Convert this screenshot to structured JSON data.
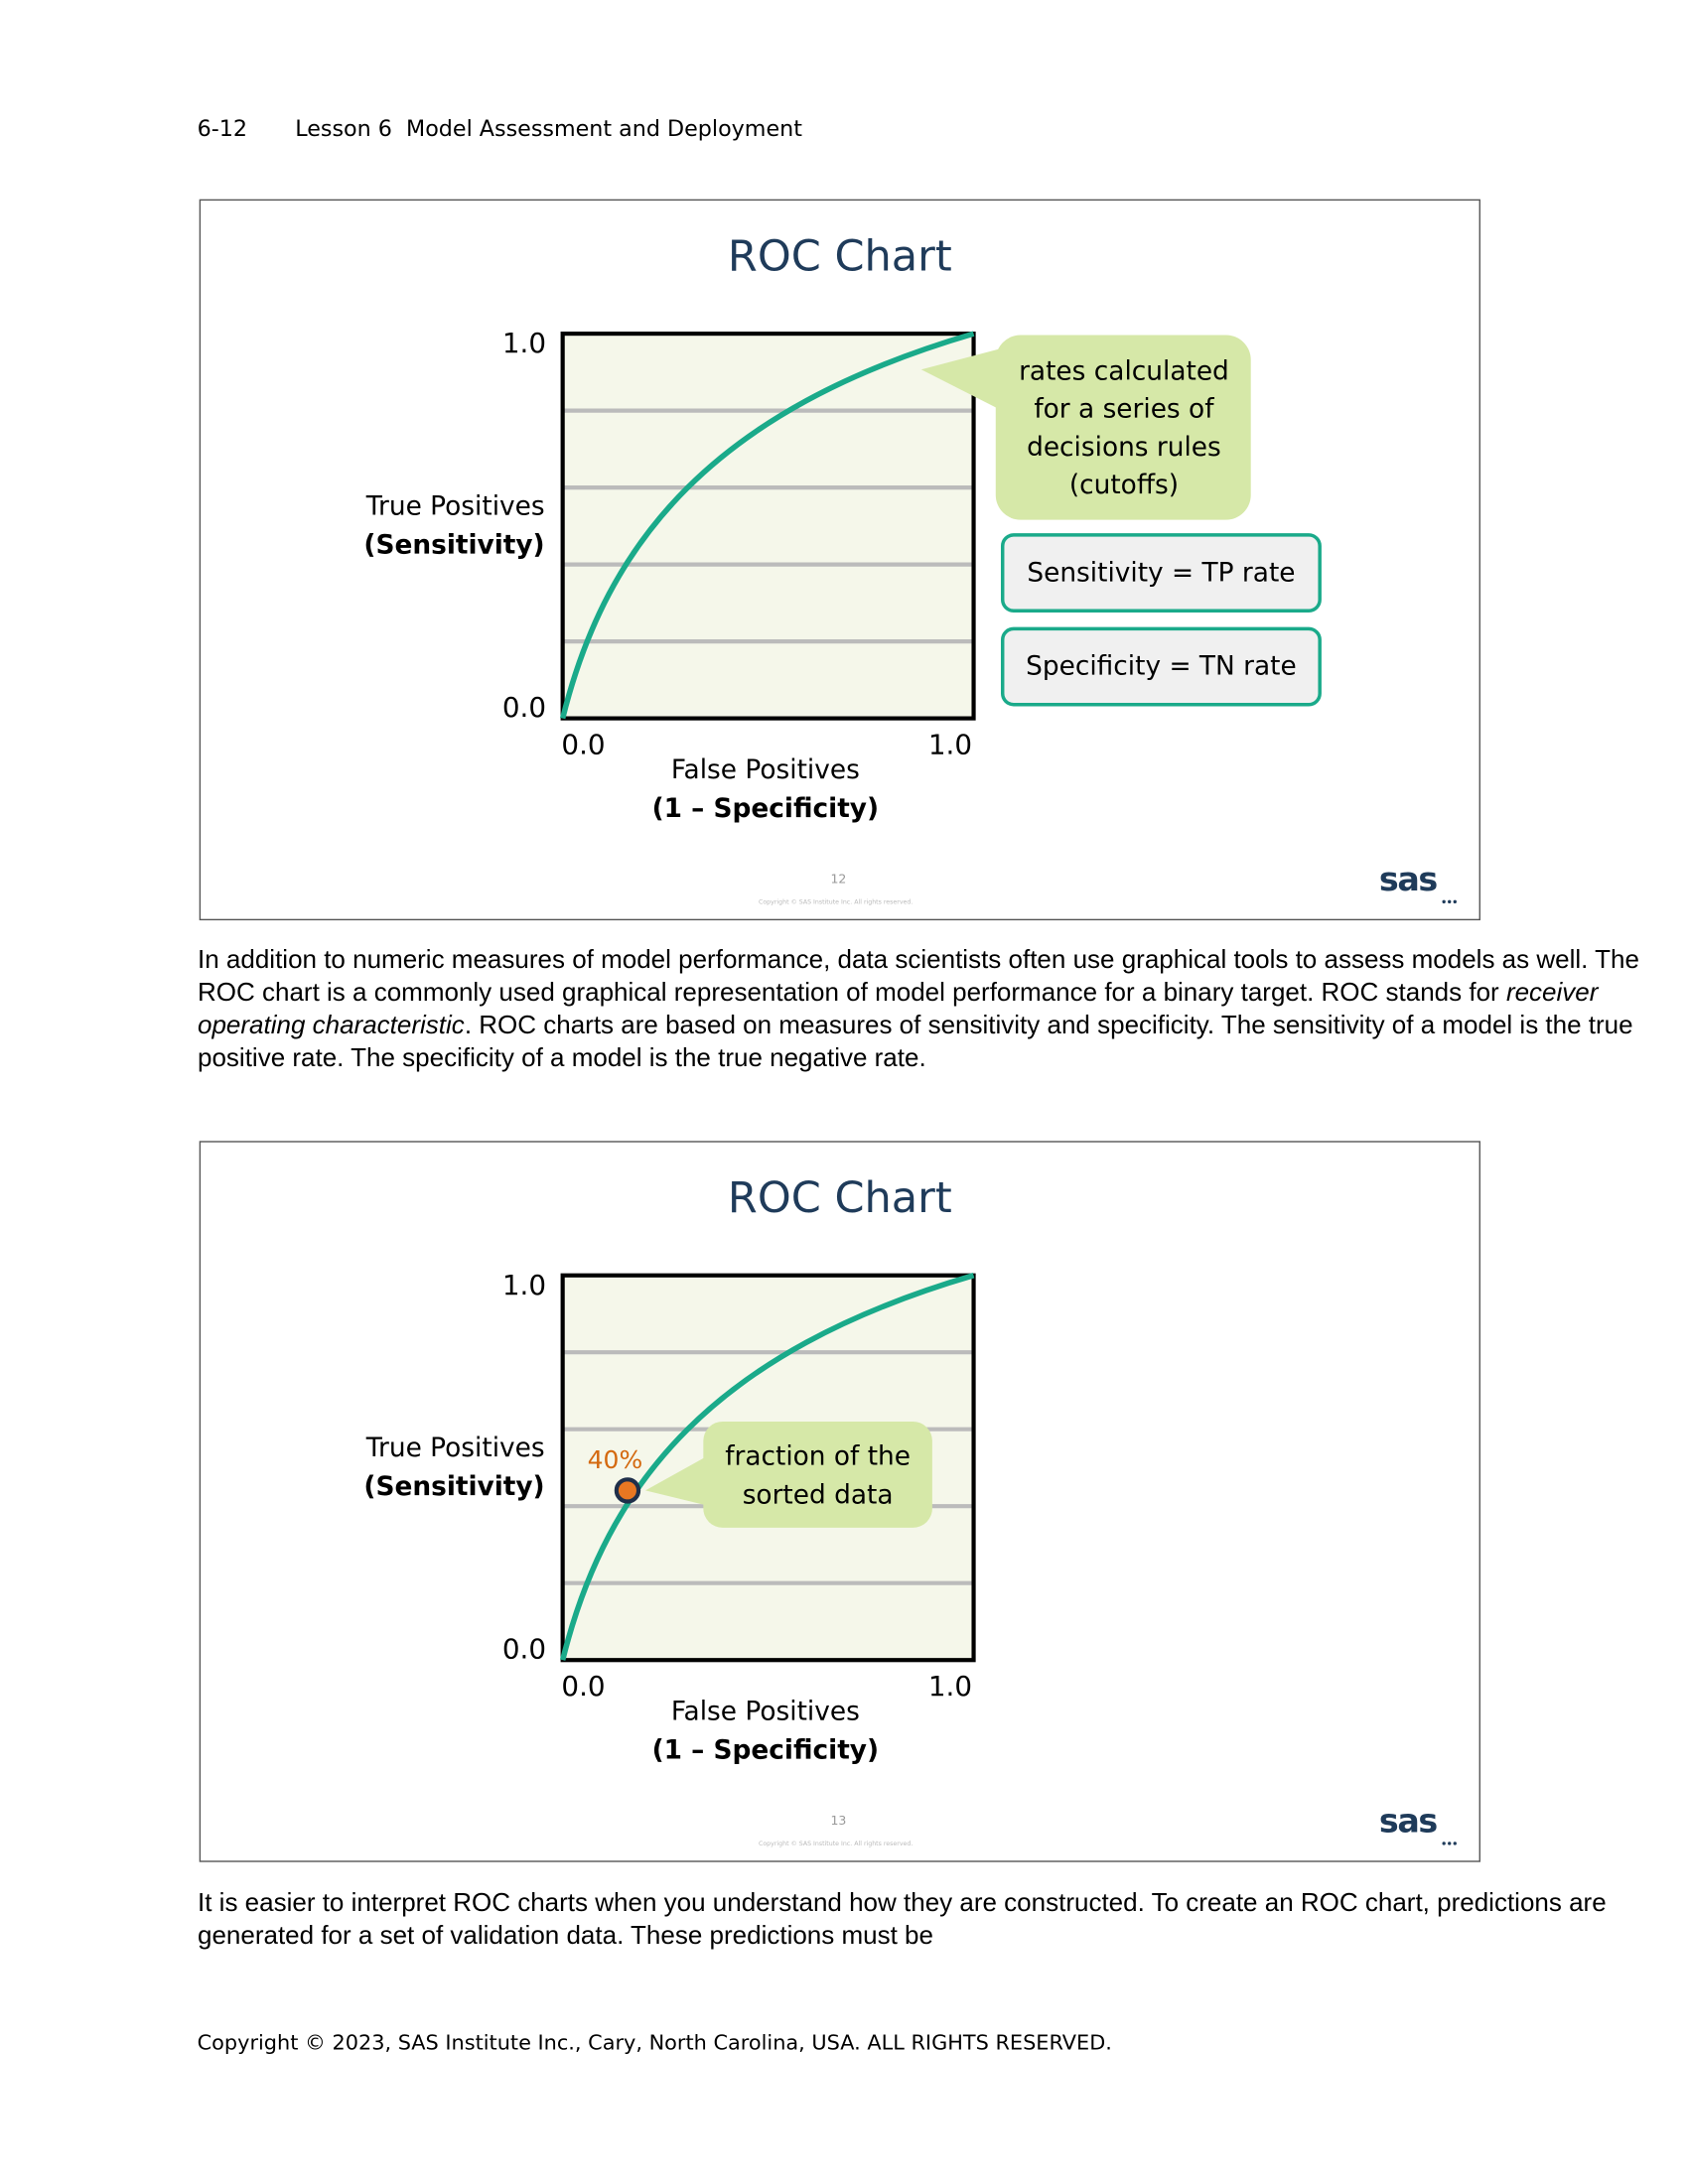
{
  "header": {
    "page_number": "6-12",
    "title": "Lesson 6  Model Assessment and Deployment"
  },
  "slides": [
    {
      "title": "ROC Chart",
      "y_axis_label": "True Positives",
      "y_axis_label_bold": "(Sensitivity)",
      "y_max_label": "1.0",
      "y_min_label": "0.0",
      "x_min_label": "0.0",
      "x_max_label": "1.0",
      "x_axis_label": "False Positives",
      "x_axis_label_bold": "(1 – Specificity)",
      "callout": [
        "rates calculated",
        "for a series of",
        "decisions rules",
        "(cutoffs)"
      ],
      "boxes": [
        "Sensitivity = TP rate",
        "Specificity = TN rate"
      ],
      "slide_number": "12",
      "copyright": "Copyright © SAS Institute Inc. All rights reserved.",
      "logo": "sas"
    },
    {
      "title": "ROC Chart",
      "y_axis_label": "True Positives",
      "y_axis_label_bold": "(Sensitivity)",
      "y_max_label": "1.0",
      "y_min_label": "0.0",
      "x_min_label": "0.0",
      "x_max_label": "1.0",
      "x_axis_label": "False Positives",
      "x_axis_label_bold": "(1 – Specificity)",
      "callout": [
        "fraction of the",
        "sorted data"
      ],
      "point_label": "40%",
      "slide_number": "13",
      "copyright": "Copyright © SAS Institute Inc. All rights reserved.",
      "logo": "sas"
    }
  ],
  "paragraphs": [
    [
      "In addition to numeric measures of model performance, data scientists often use graphical tools to assess models as well. The ROC chart is a commonly used graphical representation of model performance for a binary target. ROC stands for ",
      "receiver operating characteristic",
      ". ROC charts are based on measures of sensitivity and specificity. The sensitivity of a model is the true positive rate. The specificity of a model is the true negative rate."
    ],
    [
      "It is easier to interpret ROC charts when you understand how they are constructed. To create an ROC chart, predictions are generated for a set of validation data. These predictions must be"
    ]
  ],
  "footer": "Copyright © 2023, SAS Institute Inc., Cary, North Carolina, USA. ALL RIGHTS RESERVED."
}
